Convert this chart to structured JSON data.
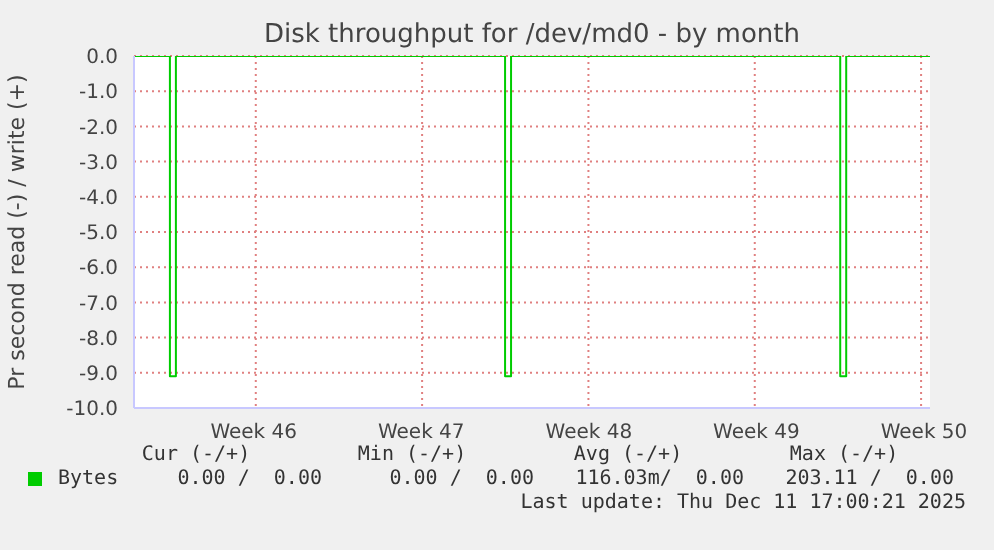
{
  "chart_data": {
    "type": "step",
    "title": "Disk throughput for /dev/md0 - by month",
    "ylabel": "Pr second read (-) / write (+)",
    "categories": [
      null,
      null,
      null,
      null,
      null,
      null,
      null,
      null,
      null,
      null,
      null,
      null,
      null,
      null,
      null,
      null,
      null,
      null,
      null,
      null,
      "Week 46",
      null,
      null,
      null,
      null,
      null,
      null,
      null,
      null,
      null,
      null,
      null,
      null,
      null,
      null,
      null,
      null,
      null,
      null,
      null,
      null,
      null,
      null,
      null,
      null,
      null,
      null,
      null,
      "Week 47",
      null,
      null,
      null,
      null,
      null,
      null,
      null,
      null,
      null,
      null,
      null,
      null,
      null,
      null,
      null,
      null,
      null,
      null,
      null,
      null,
      null,
      null,
      null,
      null,
      null,
      null,
      null,
      "Week 48",
      null,
      null,
      null,
      null,
      null,
      null,
      null,
      null,
      null,
      null,
      null,
      null,
      null,
      null,
      null,
      null,
      null,
      null,
      null,
      null,
      null,
      null,
      null,
      null,
      null,
      null,
      null,
      "Week 49",
      null,
      null,
      null,
      null,
      null,
      null,
      null,
      null,
      null,
      null,
      null,
      null,
      null,
      null,
      null,
      null,
      null,
      null,
      null,
      null,
      null,
      null,
      null,
      null,
      null,
      null,
      null,
      "Week 50",
      null
    ],
    "series": [
      {
        "name": "Bytes",
        "color": "#00cc00",
        "values": [
          0,
          0,
          0,
          0,
          0,
          0,
          -9.1,
          0,
          0,
          0,
          0,
          0,
          0,
          0,
          0,
          0,
          0,
          0,
          0,
          0,
          0,
          0,
          0,
          0,
          0,
          0,
          0,
          0,
          0,
          0,
          0,
          0,
          0,
          0,
          0,
          0,
          0,
          0,
          0,
          0,
          0,
          0,
          0,
          0,
          0,
          0,
          0,
          0,
          0,
          0,
          0,
          0,
          0,
          0,
          0,
          0,
          0,
          0,
          0,
          0,
          0,
          0,
          -9.1,
          0,
          0,
          0,
          0,
          0,
          0,
          0,
          0,
          0,
          0,
          0,
          0,
          0,
          0,
          0,
          0,
          0,
          0,
          0,
          0,
          0,
          0,
          0,
          0,
          0,
          0,
          0,
          0,
          0,
          0,
          0,
          0,
          0,
          0,
          0,
          0,
          0,
          0,
          0,
          0,
          0,
          0,
          0,
          0,
          0,
          0,
          0,
          0,
          0,
          0,
          0,
          0,
          0,
          0,
          0,
          -9.1,
          0,
          0,
          0,
          0,
          0,
          0,
          0,
          0,
          0,
          0,
          0,
          0,
          0,
          0,
          0
        ]
      }
    ],
    "ylim": [
      -10,
      0
    ],
    "yticks": [
      {
        "value": -10,
        "label": "-10.0"
      },
      {
        "value": -9,
        "label": "-9.0"
      },
      {
        "value": -8,
        "label": "-8.0"
      },
      {
        "value": -7,
        "label": "-7.0"
      },
      {
        "value": -6,
        "label": "-6.0"
      },
      {
        "value": -5,
        "label": "-5.0"
      },
      {
        "value": -4,
        "label": "-4.0"
      },
      {
        "value": -3,
        "label": "-3.0"
      },
      {
        "value": -2,
        "label": "-2.0"
      },
      {
        "value": -1,
        "label": "-1.0"
      },
      {
        "value": 0,
        "label": "0.0"
      }
    ],
    "grid": true,
    "legend": "bottom left",
    "marker": "none",
    "line_style": "solid",
    "annotations": [
      "Cur (-/+)",
      "Min (-/+)",
      "Avg (-/+)",
      "Max (-/+)",
      "0.00 /  0.00",
      "0.00 /  0.00",
      "116.03m/  0.00",
      "203.11 /  0.00",
      "Last update: Thu Dec 11 17:00:21 2025"
    ]
  }
}
